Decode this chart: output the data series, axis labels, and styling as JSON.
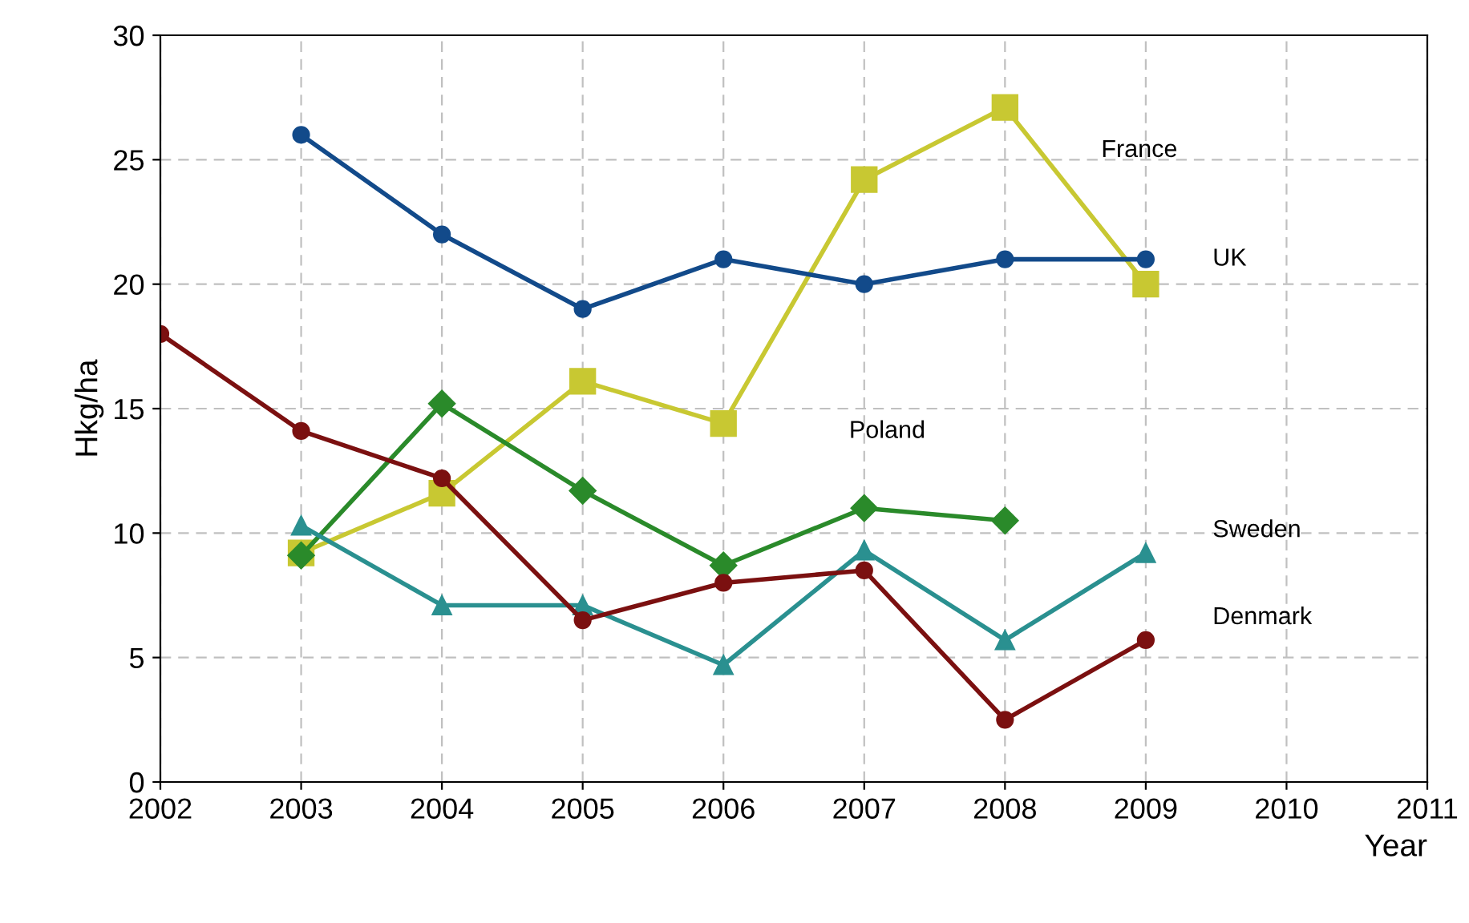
{
  "chart_data": {
    "type": "line",
    "xlabel": "Year",
    "ylabel": "Hkg/ha",
    "xlim": [
      2002,
      2011
    ],
    "xticks": [
      2002,
      2003,
      2004,
      2005,
      2006,
      2007,
      2008,
      2009,
      2010,
      2011
    ],
    "ylim": [
      0,
      30
    ],
    "yticks": [
      0,
      5,
      10,
      15,
      20,
      25,
      30
    ],
    "grid": true,
    "legend": false,
    "line_style": "solid",
    "series": [
      {
        "name": "France",
        "color": "#c8c832",
        "marker": "square",
        "x": [
          2003,
          2004,
          2005,
          2006,
          2007,
          2008,
          2009
        ],
        "values": [
          9.2,
          11.6,
          16.1,
          14.4,
          24.2,
          27.1,
          20
        ]
      },
      {
        "name": "UK",
        "color": "#124a8a",
        "marker": "circle",
        "x": [
          2003,
          2004,
          2005,
          2006,
          2007,
          2008,
          2009
        ],
        "values": [
          26,
          22,
          19,
          21,
          20,
          21,
          21
        ]
      },
      {
        "name": "Poland",
        "color": "#2a8a2a",
        "marker": "diamond",
        "x": [
          2003,
          2004,
          2005,
          2006,
          2007,
          2008
        ],
        "values": [
          9.1,
          15.2,
          11.7,
          8.7,
          11,
          10.5
        ]
      },
      {
        "name": "Sweden",
        "color": "#2a9090",
        "marker": "triangle",
        "x": [
          2003,
          2004,
          2005,
          2006,
          2007,
          2008,
          2009
        ],
        "values": [
          10.3,
          7.1,
          7.1,
          4.7,
          9.3,
          5.7,
          9.2
        ]
      },
      {
        "name": "Denmark",
        "color": "#7b1010",
        "marker": "circle",
        "x": [
          2002,
          2003,
          2004,
          2005,
          2006,
          2007,
          2008,
          2009
        ],
        "values": [
          18,
          14.1,
          12.2,
          6.5,
          8,
          8.5,
          2.5,
          5.7
        ]
      }
    ]
  }
}
